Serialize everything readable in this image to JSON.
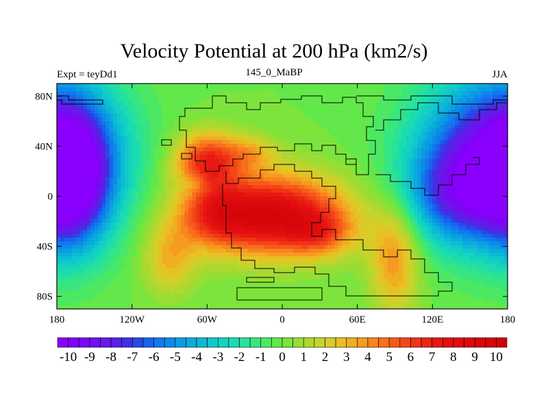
{
  "chart_data": {
    "type": "heatmap",
    "title": "Velocity Potential at 200 hPa (km2/s)",
    "left_label": "Expt = teyDd1",
    "center_label": "145_0_MaBP",
    "right_label": "JJA",
    "x_ticks": [
      {
        "value": -180,
        "label": "180"
      },
      {
        "value": -120,
        "label": "120W"
      },
      {
        "value": -60,
        "label": "60W"
      },
      {
        "value": 0,
        "label": "0"
      },
      {
        "value": 60,
        "label": "60E"
      },
      {
        "value": 120,
        "label": "120E"
      },
      {
        "value": 180,
        "label": "180"
      }
    ],
    "y_ticks": [
      {
        "value": 80,
        "label": "80N"
      },
      {
        "value": 40,
        "label": "40N"
      },
      {
        "value": 0,
        "label": "0"
      },
      {
        "value": -40,
        "label": "40S"
      },
      {
        "value": -80,
        "label": "80S"
      }
    ],
    "xlim": [
      -180,
      180
    ],
    "ylim": [
      -90,
      90
    ],
    "colorbar": {
      "min": -10.5,
      "max": 10.5,
      "step": 0.5,
      "labels": [
        "-10",
        "-9",
        "-8",
        "-7",
        "-6",
        "-5",
        "-4",
        "-3",
        "-2",
        "-1",
        "0",
        "1",
        "2",
        "3",
        "4",
        "5",
        "6",
        "7",
        "8",
        "9",
        "10"
      ],
      "colors": [
        "#8a00ff",
        "#8200f8",
        "#7a08f2",
        "#7010ee",
        "#6818ea",
        "#5a20e8",
        "#4030e4",
        "#2848e8",
        "#1a62ee",
        "#1278ee",
        "#0c8ae8",
        "#0a9ce2",
        "#0aacdc",
        "#0cbad4",
        "#10c8cc",
        "#14d2c0",
        "#1adcb0",
        "#28e29a",
        "#38e680",
        "#4ce864",
        "#62e84a",
        "#7ce43c",
        "#96de34",
        "#aed830",
        "#c4d42c",
        "#d8cc28",
        "#e8c024",
        "#f0ae22",
        "#f69a20",
        "#f8841e",
        "#f86e1c",
        "#f65a1a",
        "#f44618",
        "#f03416",
        "#ec2414",
        "#e81812",
        "#e41010",
        "#e00c0e",
        "#dc0a0c",
        "#d8080a",
        "#d40608",
        "#d00404"
      ]
    },
    "features": [
      {
        "lon": 170,
        "lat": 30,
        "amp": -9.5,
        "slon": 42,
        "slat": 45
      },
      {
        "lon": 140,
        "lat": 0,
        "amp": -4,
        "slon": 30,
        "slat": 25
      },
      {
        "lon": -168,
        "lat": 15,
        "amp": -7,
        "slon": 20,
        "slat": 38
      },
      {
        "lon": -10,
        "lat": -15,
        "amp": 9.5,
        "slon": 42,
        "slat": 22
      },
      {
        "lon": -55,
        "lat": -15,
        "amp": 3,
        "slon": 18,
        "slat": 16
      },
      {
        "lon": 30,
        "lat": -30,
        "amp": 3,
        "slon": 18,
        "slat": 12
      },
      {
        "lon": -60,
        "lat": 28,
        "amp": 6.5,
        "slon": 18,
        "slat": 16
      },
      {
        "lon": -25,
        "lat": 35,
        "amp": 2.5,
        "slon": 15,
        "slat": 10
      },
      {
        "lon": -90,
        "lat": -50,
        "amp": 3,
        "slon": 15,
        "slat": 20
      },
      {
        "lon": 90,
        "lat": -50,
        "amp": 4,
        "slon": 14,
        "slat": 30
      },
      {
        "lon": -70,
        "lat": 10,
        "amp": -1.5,
        "slon": 8,
        "slat": 6
      }
    ]
  }
}
